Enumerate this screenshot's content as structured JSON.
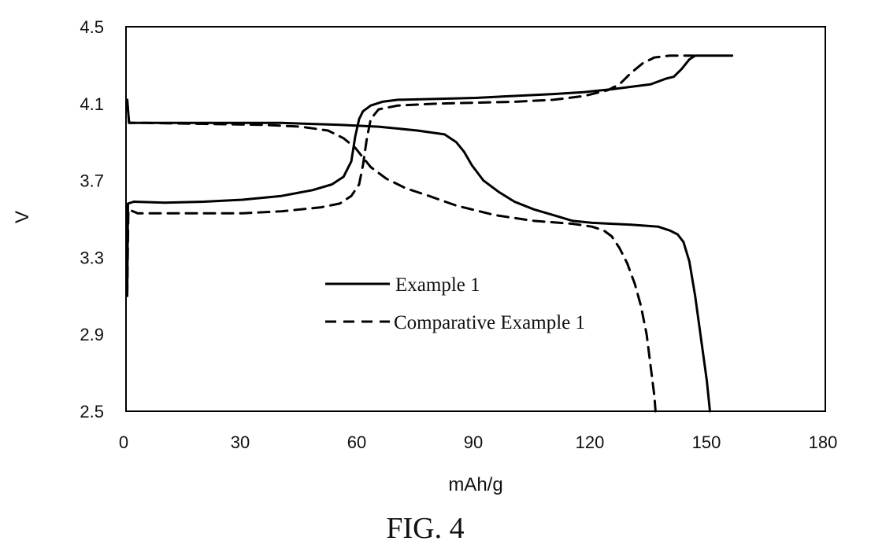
{
  "caption": "FIG. 4",
  "chart_data": {
    "type": "line",
    "xlabel": "mAh/g",
    "ylabel": "V",
    "xlim": [
      0,
      180
    ],
    "ylim": [
      2.5,
      4.5
    ],
    "xticks": [
      0,
      30,
      60,
      90,
      120,
      150,
      180
    ],
    "xtick_labels": [
      "0",
      "30",
      "60",
      "90",
      "120",
      "150",
      "180"
    ],
    "yticks": [
      2.5,
      2.9,
      3.3,
      3.7,
      4.1,
      4.5
    ],
    "ytick_labels": [
      "2.5",
      "2.9",
      "3.3",
      "3.7",
      "4.1",
      "4.5"
    ],
    "grid": false,
    "legend_position": "center",
    "series": [
      {
        "name": "Example 1",
        "style": "solid",
        "color": "#000000",
        "curves": [
          [
            [
              0.3,
              3.1
            ],
            [
              0.5,
              3.58
            ],
            [
              2,
              3.59
            ],
            [
              10,
              3.585
            ],
            [
              20,
              3.59
            ],
            [
              30,
              3.6
            ],
            [
              40,
              3.62
            ],
            [
              48,
              3.65
            ],
            [
              53,
              3.68
            ],
            [
              56,
              3.72
            ],
            [
              58,
              3.8
            ],
            [
              59,
              3.93
            ],
            [
              60,
              4.02
            ],
            [
              61,
              4.06
            ],
            [
              63,
              4.09
            ],
            [
              66,
              4.11
            ],
            [
              70,
              4.12
            ],
            [
              80,
              4.125
            ],
            [
              90,
              4.13
            ],
            [
              100,
              4.14
            ],
            [
              110,
              4.15
            ],
            [
              118,
              4.16
            ],
            [
              125,
              4.175
            ],
            [
              131,
              4.19
            ],
            [
              135,
              4.2
            ],
            [
              139,
              4.23
            ],
            [
              141,
              4.24
            ],
            [
              143,
              4.28
            ],
            [
              145,
              4.33
            ],
            [
              146.5,
              4.35
            ],
            [
              156,
              4.35
            ]
          ],
          [
            [
              0.3,
              4.12
            ],
            [
              0.8,
              4.0
            ],
            [
              5,
              4.0
            ],
            [
              20,
              4.0
            ],
            [
              40,
              4.0
            ],
            [
              55,
              3.99
            ],
            [
              65,
              3.98
            ],
            [
              75,
              3.96
            ],
            [
              82,
              3.94
            ],
            [
              85,
              3.9
            ],
            [
              87,
              3.85
            ],
            [
              89,
              3.78
            ],
            [
              92,
              3.7
            ],
            [
              96,
              3.64
            ],
            [
              100,
              3.59
            ],
            [
              105,
              3.55
            ],
            [
              110,
              3.52
            ],
            [
              115,
              3.49
            ],
            [
              120,
              3.48
            ],
            [
              130,
              3.47
            ],
            [
              137,
              3.46
            ],
            [
              140,
              3.44
            ],
            [
              142,
              3.42
            ],
            [
              143.5,
              3.38
            ],
            [
              145,
              3.28
            ],
            [
              146.5,
              3.1
            ],
            [
              148,
              2.88
            ],
            [
              149.5,
              2.66
            ],
            [
              150.3,
              2.5
            ]
          ]
        ]
      },
      {
        "name": "Comparative Example 1",
        "style": "dashed",
        "color": "#000000",
        "curves": [
          [
            [
              0.3,
              3.1
            ],
            [
              0.6,
              3.55
            ],
            [
              3,
              3.53
            ],
            [
              15,
              3.53
            ],
            [
              30,
              3.53
            ],
            [
              40,
              3.54
            ],
            [
              50,
              3.56
            ],
            [
              55,
              3.58
            ],
            [
              58,
              3.62
            ],
            [
              60,
              3.68
            ],
            [
              61,
              3.78
            ],
            [
              62,
              3.92
            ],
            [
              63,
              4.02
            ],
            [
              65,
              4.07
            ],
            [
              70,
              4.09
            ],
            [
              80,
              4.1
            ],
            [
              90,
              4.105
            ],
            [
              100,
              4.11
            ],
            [
              110,
              4.12
            ],
            [
              118,
              4.14
            ],
            [
              124,
              4.17
            ],
            [
              127,
              4.2
            ],
            [
              130,
              4.26
            ],
            [
              133,
              4.31
            ],
            [
              136,
              4.34
            ],
            [
              140,
              4.35
            ],
            [
              146,
              4.35
            ]
          ],
          [
            [
              0.3,
              4.12
            ],
            [
              0.8,
              4.0
            ],
            [
              5,
              4.0
            ],
            [
              20,
              3.995
            ],
            [
              35,
              3.99
            ],
            [
              45,
              3.98
            ],
            [
              52,
              3.96
            ],
            [
              56,
              3.92
            ],
            [
              59,
              3.87
            ],
            [
              61,
              3.82
            ],
            [
              63,
              3.77
            ],
            [
              67,
              3.71
            ],
            [
              72,
              3.66
            ],
            [
              78,
              3.62
            ],
            [
              85,
              3.57
            ],
            [
              95,
              3.52
            ],
            [
              105,
              3.49
            ],
            [
              115,
              3.475
            ],
            [
              120,
              3.46
            ],
            [
              123,
              3.44
            ],
            [
              125,
              3.41
            ],
            [
              127,
              3.35
            ],
            [
              129,
              3.27
            ],
            [
              131,
              3.16
            ],
            [
              132.5,
              3.05
            ],
            [
              134,
              2.9
            ],
            [
              135,
              2.74
            ],
            [
              136,
              2.58
            ],
            [
              136.3,
              2.5
            ]
          ]
        ]
      }
    ]
  }
}
